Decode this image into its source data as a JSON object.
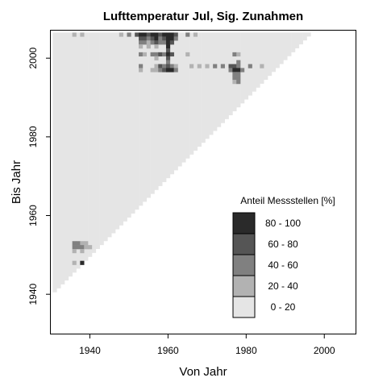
{
  "chart_data": {
    "type": "heatmap",
    "title": "Lufttemperatur Jul, Sig. Zunahmen",
    "xlabel": "Von Jahr",
    "ylabel": "Bis Jahr",
    "xlim": [
      1930,
      2008
    ],
    "ylim": [
      1930,
      2007
    ],
    "x_ticks": [
      1940,
      1960,
      1980,
      2000
    ],
    "y_ticks": [
      1940,
      1960,
      1980,
      2000
    ],
    "grid": false,
    "legend": {
      "title": "Anteil Messstellen [%]",
      "placement": "bottom-right",
      "entries": [
        {
          "label": "80 - 100",
          "color": "#2a2a2a"
        },
        {
          "label": "60 -  80",
          "color": "#555555"
        },
        {
          "label": "40 -  60",
          "color": "#808080"
        },
        {
          "label": "20 -  40",
          "color": "#b2b2b2"
        },
        {
          "label": "0 -  20",
          "color": "#e5e5e5"
        }
      ]
    },
    "triangle": {
      "x_from": 1931,
      "x_to": 1996,
      "y_top": 2006,
      "min_span": 10,
      "default_class": "0 -  20"
    },
    "cells": [
      {
        "x": 1936,
        "y": 2006,
        "class": "20 -  40"
      },
      {
        "x": 1938,
        "y": 2006,
        "class": "20 -  40"
      },
      {
        "x": 1948,
        "y": 2006,
        "class": "20 -  40"
      },
      {
        "x": 1950,
        "y": 2006,
        "class": "40 -  60"
      },
      {
        "x": 1952,
        "y": 2006,
        "class": "60 -  80"
      },
      {
        "x": 1953,
        "y": 2006,
        "class": "80 - 100"
      },
      {
        "x": 1954,
        "y": 2006,
        "class": "80 - 100"
      },
      {
        "x": 1955,
        "y": 2006,
        "class": "60 -  80"
      },
      {
        "x": 1956,
        "y": 2006,
        "class": "80 - 100"
      },
      {
        "x": 1957,
        "y": 2006,
        "class": "80 - 100"
      },
      {
        "x": 1958,
        "y": 2006,
        "class": "60 -  80"
      },
      {
        "x": 1959,
        "y": 2006,
        "class": "80 - 100"
      },
      {
        "x": 1960,
        "y": 2006,
        "class": "80 - 100"
      },
      {
        "x": 1961,
        "y": 2006,
        "class": "80 - 100"
      },
      {
        "x": 1962,
        "y": 2006,
        "class": "60 -  80"
      },
      {
        "x": 1965,
        "y": 2006,
        "class": "40 -  60"
      },
      {
        "x": 1967,
        "y": 2006,
        "class": "20 -  40"
      },
      {
        "x": 1953,
        "y": 2005,
        "class": "60 -  80"
      },
      {
        "x": 1954,
        "y": 2005,
        "class": "60 -  80"
      },
      {
        "x": 1955,
        "y": 2005,
        "class": "40 -  60"
      },
      {
        "x": 1956,
        "y": 2005,
        "class": "60 -  80"
      },
      {
        "x": 1957,
        "y": 2005,
        "class": "80 - 100"
      },
      {
        "x": 1958,
        "y": 2005,
        "class": "40 -  60"
      },
      {
        "x": 1959,
        "y": 2005,
        "class": "60 -  80"
      },
      {
        "x": 1960,
        "y": 2005,
        "class": "80 - 100"
      },
      {
        "x": 1961,
        "y": 2005,
        "class": "80 - 100"
      },
      {
        "x": 1962,
        "y": 2005,
        "class": "40 -  60"
      },
      {
        "x": 1953,
        "y": 2004,
        "class": "40 -  60"
      },
      {
        "x": 1954,
        "y": 2004,
        "class": "40 -  60"
      },
      {
        "x": 1955,
        "y": 2004,
        "class": "20 -  40"
      },
      {
        "x": 1956,
        "y": 2004,
        "class": "40 -  60"
      },
      {
        "x": 1957,
        "y": 2004,
        "class": "60 -  80"
      },
      {
        "x": 1958,
        "y": 2004,
        "class": "40 -  60"
      },
      {
        "x": 1959,
        "y": 2004,
        "class": "40 -  60"
      },
      {
        "x": 1960,
        "y": 2004,
        "class": "80 - 100"
      },
      {
        "x": 1961,
        "y": 2004,
        "class": "60 -  80"
      },
      {
        "x": 1953,
        "y": 2003,
        "class": "20 -  40"
      },
      {
        "x": 1955,
        "y": 2003,
        "class": "20 -  40"
      },
      {
        "x": 1957,
        "y": 2003,
        "class": "20 -  40"
      },
      {
        "x": 1960,
        "y": 2003,
        "class": "80 - 100"
      },
      {
        "x": 1960,
        "y": 2002,
        "class": "60 -  80"
      },
      {
        "x": 1953,
        "y": 2001,
        "class": "40 -  60"
      },
      {
        "x": 1954,
        "y": 2001,
        "class": "20 -  40"
      },
      {
        "x": 1956,
        "y": 2001,
        "class": "40 -  60"
      },
      {
        "x": 1957,
        "y": 2001,
        "class": "40 -  60"
      },
      {
        "x": 1958,
        "y": 2001,
        "class": "60 -  80"
      },
      {
        "x": 1959,
        "y": 2001,
        "class": "40 -  60"
      },
      {
        "x": 1960,
        "y": 2001,
        "class": "80 - 100"
      },
      {
        "x": 1961,
        "y": 2001,
        "class": "60 -  80"
      },
      {
        "x": 1965,
        "y": 2001,
        "class": "20 -  40"
      },
      {
        "x": 1977,
        "y": 2001,
        "class": "40 -  60"
      },
      {
        "x": 1978,
        "y": 2001,
        "class": "20 -  40"
      },
      {
        "x": 1957,
        "y": 2000,
        "class": "20 -  40"
      },
      {
        "x": 1960,
        "y": 2000,
        "class": "60 -  80"
      },
      {
        "x": 1960,
        "y": 1999,
        "class": "40 -  60"
      },
      {
        "x": 1978,
        "y": 1999,
        "class": "40 -  60"
      },
      {
        "x": 1953,
        "y": 1998,
        "class": "40 -  60"
      },
      {
        "x": 1957,
        "y": 1998,
        "class": "20 -  40"
      },
      {
        "x": 1958,
        "y": 1998,
        "class": "60 -  80"
      },
      {
        "x": 1959,
        "y": 1998,
        "class": "40 -  60"
      },
      {
        "x": 1960,
        "y": 1998,
        "class": "60 -  80"
      },
      {
        "x": 1961,
        "y": 1998,
        "class": "40 -  60"
      },
      {
        "x": 1962,
        "y": 1998,
        "class": "20 -  40"
      },
      {
        "x": 1966,
        "y": 1998,
        "class": "20 -  40"
      },
      {
        "x": 1968,
        "y": 1998,
        "class": "20 -  40"
      },
      {
        "x": 1970,
        "y": 1998,
        "class": "20 -  40"
      },
      {
        "x": 1972,
        "y": 1998,
        "class": "40 -  60"
      },
      {
        "x": 1974,
        "y": 1998,
        "class": "40 -  60"
      },
      {
        "x": 1976,
        "y": 1998,
        "class": "60 -  80"
      },
      {
        "x": 1977,
        "y": 1998,
        "class": "60 -  80"
      },
      {
        "x": 1978,
        "y": 1998,
        "class": "40 -  60"
      },
      {
        "x": 1981,
        "y": 1998,
        "class": "40 -  60"
      },
      {
        "x": 1984,
        "y": 1998,
        "class": "20 -  40"
      },
      {
        "x": 1953,
        "y": 1997,
        "class": "20 -  40"
      },
      {
        "x": 1956,
        "y": 1997,
        "class": "20 -  40"
      },
      {
        "x": 1957,
        "y": 1997,
        "class": "20 -  40"
      },
      {
        "x": 1958,
        "y": 1997,
        "class": "40 -  60"
      },
      {
        "x": 1959,
        "y": 1997,
        "class": "60 -  80"
      },
      {
        "x": 1960,
        "y": 1997,
        "class": "80 - 100"
      },
      {
        "x": 1961,
        "y": 1997,
        "class": "80 - 100"
      },
      {
        "x": 1962,
        "y": 1997,
        "class": "40 -  60"
      },
      {
        "x": 1976,
        "y": 1997,
        "class": "40 -  60"
      },
      {
        "x": 1977,
        "y": 1997,
        "class": "80 - 100"
      },
      {
        "x": 1978,
        "y": 1997,
        "class": "80 - 100"
      },
      {
        "x": 1979,
        "y": 1997,
        "class": "40 -  60"
      },
      {
        "x": 1977,
        "y": 1996,
        "class": "40 -  60"
      },
      {
        "x": 1978,
        "y": 1996,
        "class": "40 -  60"
      },
      {
        "x": 1977,
        "y": 1995,
        "class": "40 -  60"
      },
      {
        "x": 1978,
        "y": 1995,
        "class": "40 -  60"
      },
      {
        "x": 1977,
        "y": 1994,
        "class": "20 -  40"
      },
      {
        "x": 1978,
        "y": 1994,
        "class": "40 -  60"
      },
      {
        "x": 1936,
        "y": 1953,
        "class": "40 -  60"
      },
      {
        "x": 1937,
        "y": 1953,
        "class": "40 -  60"
      },
      {
        "x": 1938,
        "y": 1953,
        "class": "20 -  40"
      },
      {
        "x": 1939,
        "y": 1953,
        "class": "20 -  40"
      },
      {
        "x": 1936,
        "y": 1952,
        "class": "40 -  60"
      },
      {
        "x": 1937,
        "y": 1952,
        "class": "40 -  60"
      },
      {
        "x": 1938,
        "y": 1952,
        "class": "40 -  60"
      },
      {
        "x": 1939,
        "y": 1952,
        "class": "20 -  40"
      },
      {
        "x": 1940,
        "y": 1952,
        "class": "20 -  40"
      },
      {
        "x": 1936,
        "y": 1951,
        "class": "20 -  40"
      },
      {
        "x": 1938,
        "y": 1951,
        "class": "20 -  40"
      },
      {
        "x": 1936,
        "y": 1948,
        "class": "20 -  40"
      },
      {
        "x": 1938,
        "y": 1948,
        "class": "80 - 100"
      }
    ]
  }
}
